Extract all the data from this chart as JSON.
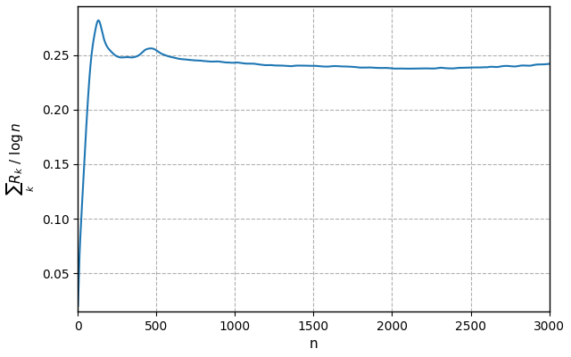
{
  "title": "",
  "xlabel": "n",
  "ylabel": "$\\sum_k R_k$ / $\\log n$",
  "xlim": [
    0,
    3000
  ],
  "ylim": [
    0.015,
    0.295
  ],
  "xticks": [
    0,
    500,
    1000,
    1500,
    2000,
    2500,
    3000
  ],
  "yticks": [
    0.05,
    0.1,
    0.15,
    0.2,
    0.25
  ],
  "line_color": "#1f77b4",
  "line_width": 1.5,
  "grid": true,
  "grid_style": "--",
  "grid_color": "#b0b0b0",
  "n_points": 3000,
  "seed": 42,
  "waypoints_n": [
    1,
    3,
    8,
    20,
    50,
    80,
    110,
    130,
    160,
    200,
    250,
    320,
    390,
    430,
    480,
    530,
    600,
    700,
    850,
    1000,
    1200,
    1500,
    1800,
    2000,
    2300,
    2600,
    3000
  ],
  "waypoints_v": [
    0.02,
    0.03,
    0.055,
    0.095,
    0.175,
    0.24,
    0.272,
    0.282,
    0.268,
    0.255,
    0.249,
    0.248,
    0.25,
    0.255,
    0.256,
    0.252,
    0.248,
    0.246,
    0.244,
    0.243,
    0.241,
    0.24,
    0.239,
    0.238,
    0.238,
    0.239,
    0.242
  ]
}
